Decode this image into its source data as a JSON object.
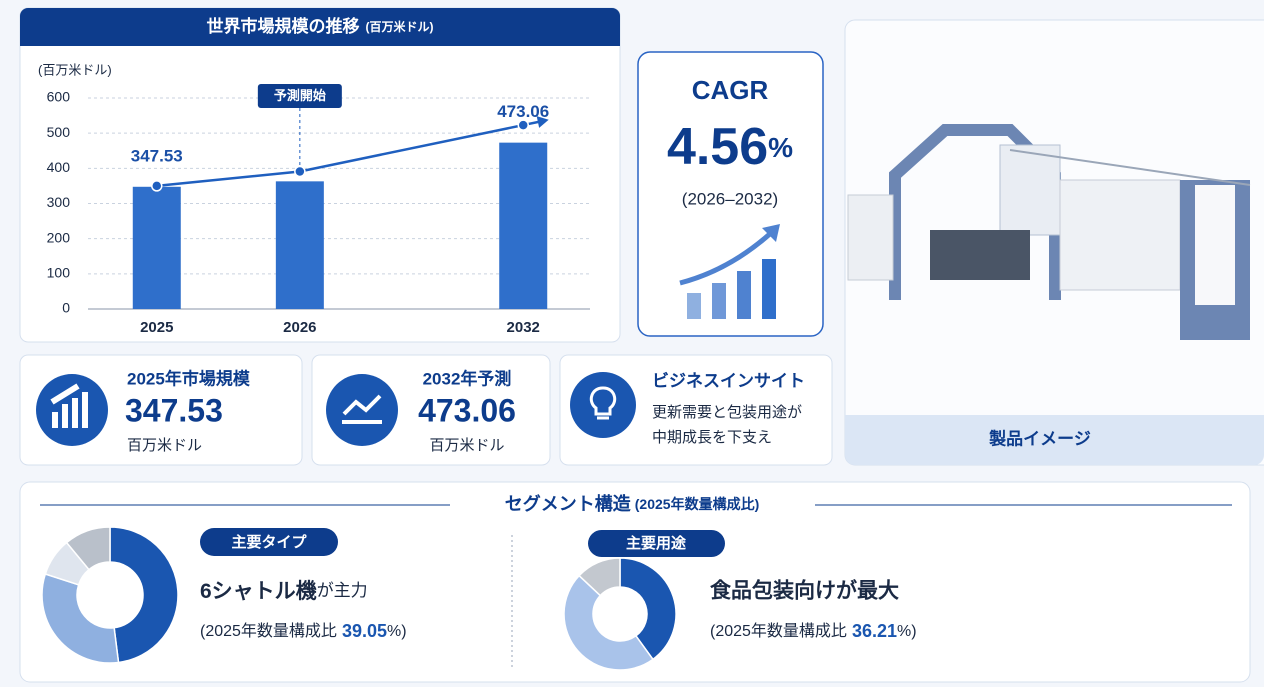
{
  "chart_data": [
    {
      "type": "bar",
      "title": "世界市場規模の推移",
      "subtitle": "(百万米ドル)",
      "y_label": "(百万米ドル)",
      "categories": [
        "2025",
        "2026",
        "2032"
      ],
      "series": [
        {
          "type": "bar",
          "color": "#2f6fcb",
          "values": [
            347.53,
            363,
            473.06
          ],
          "value_labels": [
            "347.53",
            null,
            "473.06"
          ]
        },
        {
          "type": "line",
          "color": "#1f5fbf",
          "values": [
            350,
            391,
            523
          ]
        }
      ],
      "annotation": {
        "text": "予測開始",
        "category": "2026"
      },
      "ylim": [
        0,
        600
      ],
      "yticks": [
        0,
        100,
        200,
        300,
        400,
        500,
        600
      ],
      "grid": true
    },
    {
      "type": "pie",
      "donut": true,
      "values": [
        48,
        32,
        9,
        11
      ],
      "colors": [
        "#1a56b0",
        "#8fb0e0",
        "#dfe5ee",
        "#b9c0ca"
      ]
    },
    {
      "type": "pie",
      "donut": true,
      "values": [
        40,
        47,
        13
      ],
      "colors": [
        "#1a56b0",
        "#a9c3ea",
        "#c3c8cf"
      ]
    }
  ],
  "cagr": {
    "label": "CAGR",
    "value": "4.56",
    "unit": "%",
    "period": "(2026–2032)"
  },
  "cards": [
    {
      "title": "2025年市場規模",
      "value": "347.53",
      "unit": "百万米ドル"
    },
    {
      "title": "2032年予測",
      "value": "473.06",
      "unit": "百万米ドル"
    },
    {
      "title": "ビジネスインサイト",
      "lines": [
        "更新需要と包装用途が",
        "中期成長を下支え"
      ]
    }
  ],
  "product": {
    "caption": "製品イメージ"
  },
  "segments": {
    "title": "セグメント構造",
    "subtitle": "(2025年数量構成比)",
    "left": {
      "badge": "主要タイプ",
      "headline_bold": "6シャトル機",
      "headline_rest": "が主力",
      "note_prefix": "(2025年数量構成比",
      "share": "39.05",
      "note_suffix": "%)"
    },
    "right": {
      "badge": "主要用途",
      "headline_bold": "食品包装向けが最大",
      "note_prefix": "(2025年数量構成比",
      "share": "36.21",
      "note_suffix": "%)"
    }
  }
}
